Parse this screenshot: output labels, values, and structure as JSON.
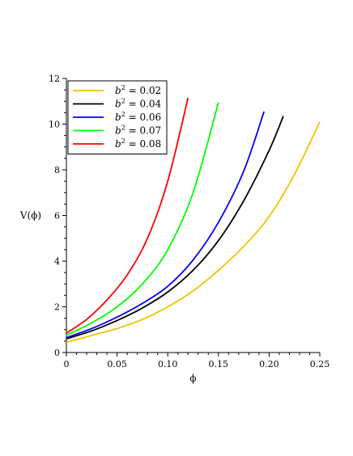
{
  "chart_data": {
    "type": "line",
    "title": "",
    "xlabel": "ϕ",
    "ylabel": "V(ϕ)",
    "xlim": [
      0,
      0.25
    ],
    "ylim": [
      0,
      12
    ],
    "x_ticks": [
      "0",
      "0.05",
      "0.10",
      "0.15",
      "0.20",
      "0.25"
    ],
    "y_ticks": [
      "0",
      "2",
      "4",
      "6",
      "8",
      "10",
      "12"
    ],
    "grid": false,
    "legend_position": "top-left",
    "series": [
      {
        "name": "b² = 0.02",
        "legend_base": "b",
        "legend_exp": "2",
        "legend_rest": " = 0.02",
        "color": "#f2c300",
        "x": [
          0,
          0.025,
          0.05,
          0.075,
          0.1,
          0.125,
          0.15,
          0.175,
          0.2,
          0.225,
          0.25
        ],
        "y": [
          0.45,
          0.75,
          1.05,
          1.45,
          2.0,
          2.7,
          3.6,
          4.65,
          5.95,
          7.8,
          10.1
        ]
      },
      {
        "name": "b² = 0.04",
        "legend_base": "b",
        "legend_exp": "2",
        "legend_rest": " = 0.04",
        "color": "#000000",
        "x": [
          0,
          0.025,
          0.05,
          0.075,
          0.1,
          0.125,
          0.15,
          0.175,
          0.2,
          0.214
        ],
        "y": [
          0.6,
          0.95,
          1.4,
          1.95,
          2.65,
          3.6,
          4.9,
          6.65,
          8.85,
          10.35
        ]
      },
      {
        "name": "b² = 0.06",
        "legend_base": "b",
        "legend_exp": "2",
        "legend_rest": " = 0.06",
        "color": "#0000ff",
        "x": [
          0,
          0.025,
          0.05,
          0.075,
          0.1,
          0.125,
          0.15,
          0.175,
          0.195
        ],
        "y": [
          0.65,
          1.05,
          1.55,
          2.15,
          2.9,
          4.05,
          5.7,
          7.95,
          10.55
        ]
      },
      {
        "name": "b² = 0.07",
        "legend_base": "b",
        "legend_exp": "2",
        "legend_rest": " = 0.07",
        "color": "#00ff00",
        "x": [
          0,
          0.025,
          0.05,
          0.075,
          0.1,
          0.125,
          0.15
        ],
        "y": [
          0.75,
          1.3,
          2.0,
          3.0,
          4.5,
          7.0,
          10.95
        ]
      },
      {
        "name": "b² = 0.08",
        "legend_base": "b",
        "legend_exp": "2",
        "legend_rest": " = 0.08",
        "color": "#ff0000",
        "x": [
          0,
          0.02,
          0.04,
          0.06,
          0.08,
          0.1,
          0.12
        ],
        "y": [
          0.85,
          1.45,
          2.3,
          3.4,
          5.0,
          7.5,
          11.15
        ]
      }
    ]
  }
}
